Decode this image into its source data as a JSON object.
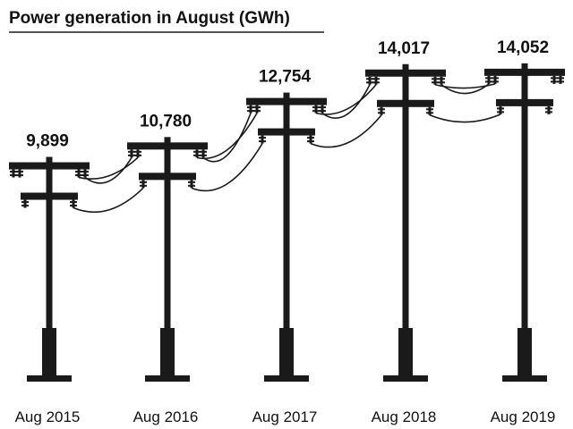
{
  "chart_data": {
    "type": "bar",
    "title": "Power generation in August (GWh)",
    "xlabel": "",
    "ylabel": "",
    "categories": [
      "Aug 2015",
      "Aug 2016",
      "Aug 2017",
      "Aug 2018",
      "Aug 2019"
    ],
    "values": [
      9899,
      10780,
      12754,
      14017,
      14052
    ],
    "value_labels": [
      "9,899",
      "10,780",
      "12,754",
      "14,017",
      "14,052"
    ],
    "ylim": [
      0,
      15000
    ],
    "grid": false,
    "legend": "none",
    "mark_style": "utility-pole",
    "colors": {
      "ink": "#1a1a1a",
      "background": "#ffffff"
    }
  }
}
